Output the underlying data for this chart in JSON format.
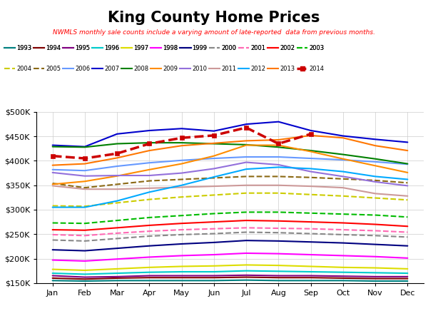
{
  "title": "King County Home Prices",
  "subtitle": "NWMLS monthly sale counts include a varying amount of late-reported  data from previous months.",
  "months": [
    "Jan",
    "Feb",
    "Mar",
    "Apr",
    "May",
    "Jun",
    "Jul",
    "Aug",
    "Sep",
    "Oct",
    "Nov",
    "Dec"
  ],
  "ylim": [
    150000,
    500000
  ],
  "yticks": [
    150000,
    200000,
    250000,
    300000,
    350000,
    400000,
    450000,
    500000
  ],
  "series": [
    {
      "year": "1993",
      "color": "#008080",
      "linestyle": "solid",
      "linewidth": 1.5,
      "values": [
        155000,
        154000,
        155000,
        155000,
        155000,
        155000,
        156000,
        155000,
        155000,
        155000,
        154000,
        154000
      ]
    },
    {
      "year": "1994",
      "color": "#800000",
      "linestyle": "solid",
      "linewidth": 1.5,
      "values": [
        160000,
        158000,
        160000,
        161000,
        161000,
        161000,
        162000,
        161000,
        161000,
        160000,
        159000,
        159000
      ]
    },
    {
      "year": "1995",
      "color": "#800080",
      "linestyle": "solid",
      "linewidth": 1.5,
      "values": [
        165000,
        162000,
        163000,
        165000,
        165000,
        165000,
        166000,
        165000,
        165000,
        164000,
        163000,
        163000
      ]
    },
    {
      "year": "1996",
      "color": "#00CCCC",
      "linestyle": "solid",
      "linewidth": 1.5,
      "values": [
        170000,
        168000,
        170000,
        172000,
        173000,
        173000,
        175000,
        174000,
        173000,
        172000,
        171000,
        170000
      ]
    },
    {
      "year": "1997",
      "color": "#DDDD00",
      "linestyle": "solid",
      "linewidth": 1.5,
      "values": [
        178000,
        176000,
        179000,
        182000,
        184000,
        185000,
        187000,
        186000,
        184000,
        182000,
        181000,
        179000
      ]
    },
    {
      "year": "1998",
      "color": "#FF00FF",
      "linestyle": "solid",
      "linewidth": 1.5,
      "values": [
        197000,
        195000,
        199000,
        203000,
        206000,
        208000,
        211000,
        210000,
        208000,
        206000,
        204000,
        201000
      ]
    },
    {
      "year": "1999",
      "color": "#000080",
      "linestyle": "solid",
      "linewidth": 1.5,
      "values": [
        218000,
        216000,
        221000,
        226000,
        230000,
        233000,
        237000,
        236000,
        234000,
        232000,
        229000,
        226000
      ]
    },
    {
      "year": "2000",
      "color": "#888888",
      "linestyle": "dashed",
      "linewidth": 1.5,
      "values": [
        238000,
        236000,
        241000,
        246000,
        249000,
        251000,
        254000,
        253000,
        251000,
        249000,
        247000,
        244000
      ]
    },
    {
      "year": "2001",
      "color": "#FF69B4",
      "linestyle": "dashed",
      "linewidth": 1.5,
      "values": [
        249000,
        247000,
        252000,
        256000,
        259000,
        261000,
        263000,
        262000,
        261000,
        259000,
        257000,
        254000
      ]
    },
    {
      "year": "2002",
      "color": "#FF0000",
      "linestyle": "solid",
      "linewidth": 1.5,
      "values": [
        259000,
        258000,
        263000,
        268000,
        272000,
        275000,
        278000,
        277000,
        275000,
        273000,
        270000,
        266000
      ]
    },
    {
      "year": "2003",
      "color": "#00BB00",
      "linestyle": "dashed",
      "linewidth": 1.5,
      "values": [
        273000,
        272000,
        278000,
        284000,
        288000,
        292000,
        295000,
        295000,
        293000,
        291000,
        289000,
        285000
      ]
    },
    {
      "year": "2004",
      "color": "#CCCC00",
      "linestyle": "dashed",
      "linewidth": 1.5,
      "values": [
        308000,
        307000,
        314000,
        321000,
        326000,
        330000,
        334000,
        334000,
        331000,
        328000,
        324000,
        320000
      ]
    },
    {
      "year": "2005",
      "color": "#8B6914",
      "linestyle": "dashed",
      "linewidth": 1.5,
      "values": [
        354000,
        345000,
        352000,
        359000,
        362000,
        365000,
        368000,
        368000,
        366000,
        363000,
        360000,
        355000
      ]
    },
    {
      "year": "2006",
      "color": "#6699FF",
      "linestyle": "solid",
      "linewidth": 1.5,
      "values": [
        382000,
        380000,
        389000,
        396000,
        401000,
        405000,
        408000,
        408000,
        405000,
        402000,
        398000,
        393000
      ]
    },
    {
      "year": "2007",
      "color": "#0000CC",
      "linestyle": "solid",
      "linewidth": 1.5,
      "values": [
        432000,
        429000,
        455000,
        462000,
        466000,
        461000,
        475000,
        480000,
        462000,
        451000,
        444000,
        438000
      ]
    },
    {
      "year": "2008",
      "color": "#008000",
      "linestyle": "solid",
      "linewidth": 1.5,
      "values": [
        429000,
        428000,
        435000,
        437000,
        437000,
        435000,
        433000,
        428000,
        421000,
        413000,
        404000,
        394000
      ]
    },
    {
      "year": "2009",
      "color": "#FF8C00",
      "linestyle": "solid",
      "linewidth": 1.5,
      "values": [
        352000,
        358000,
        369000,
        382000,
        394000,
        410000,
        432000,
        432000,
        419000,
        404000,
        390000,
        376000
      ]
    },
    {
      "year": "2010",
      "color": "#9370DB",
      "linestyle": "solid",
      "linewidth": 1.5,
      "values": [
        376000,
        369000,
        370000,
        370000,
        375000,
        384000,
        397000,
        392000,
        378000,
        368000,
        357000,
        349000
      ]
    },
    {
      "year": "2011",
      "color": "#CC9999",
      "linestyle": "solid",
      "linewidth": 1.5,
      "values": [
        349000,
        342000,
        342000,
        344000,
        346000,
        348000,
        350000,
        350000,
        348000,
        345000,
        333000,
        328000
      ]
    },
    {
      "year": "2012",
      "color": "#00AAFF",
      "linestyle": "solid",
      "linewidth": 1.5,
      "values": [
        305000,
        305000,
        318000,
        336000,
        350000,
        367000,
        383000,
        387000,
        384000,
        378000,
        368000,
        362000
      ]
    },
    {
      "year": "2013",
      "color": "#FF7700",
      "linestyle": "solid",
      "linewidth": 1.5,
      "values": [
        391000,
        394000,
        406000,
        421000,
        431000,
        436000,
        441000,
        443000,
        452000,
        447000,
        431000,
        421000
      ]
    },
    {
      "year": "2014",
      "color": "#CC0000",
      "linestyle": "dashed",
      "linewidth": 2.5,
      "marker": "s",
      "markersize": 5,
      "values": [
        410000,
        405000,
        415000,
        435000,
        447000,
        452000,
        468000,
        435000,
        455000,
        null,
        null,
        null
      ]
    }
  ]
}
